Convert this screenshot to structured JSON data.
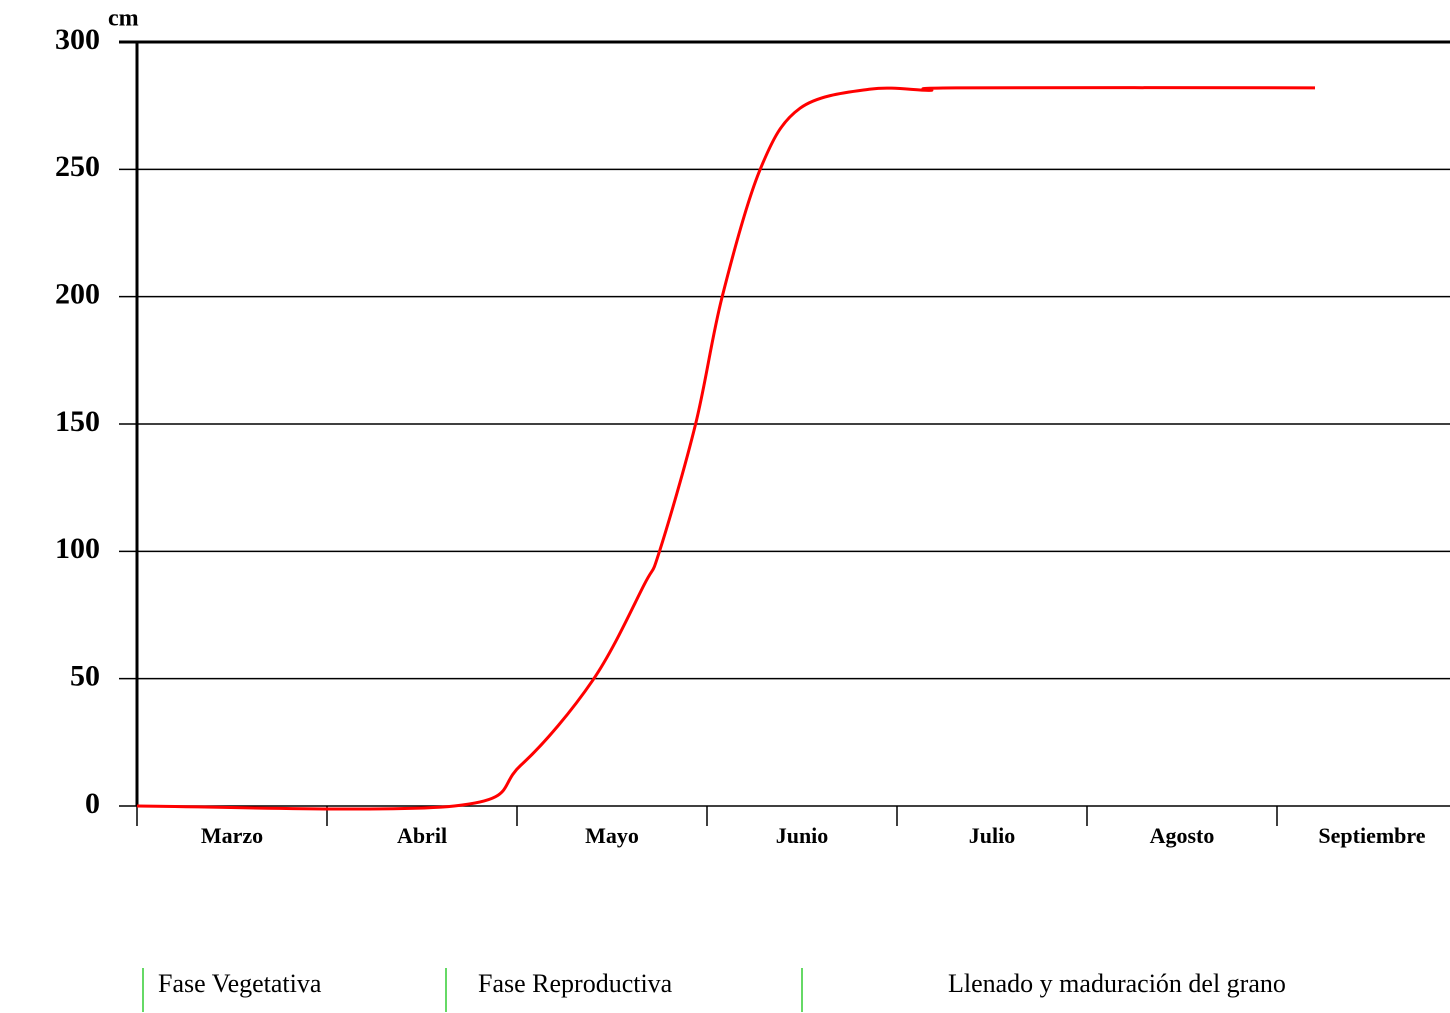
{
  "chart_data": {
    "type": "line",
    "y_label": "cm",
    "categories": [
      "Marzo",
      "Abril",
      "Mayo",
      "Junio",
      "Julio",
      "Agosto",
      "Septiembre"
    ],
    "xlim": [
      0,
      7
    ],
    "ylim": [
      0,
      300
    ],
    "yticks": [
      0,
      50,
      100,
      150,
      200,
      250,
      300
    ],
    "grid": true,
    "series": [
      {
        "color": "#ff0000",
        "x": [
          0,
          1.67,
          2.02,
          2.4,
          2.67,
          2.75,
          2.94,
          3.08,
          3.28,
          3.49,
          3.86,
          4.17,
          4.31,
          6.2
        ],
        "values": [
          0,
          0,
          16,
          49.5,
          87,
          100,
          150,
          200,
          250,
          274,
          281.5,
          281,
          282,
          282
        ]
      }
    ],
    "phases": [
      "Fase Vegetativa",
      "Fase Reproductiva",
      "Llenado y maduración del grano"
    ]
  }
}
